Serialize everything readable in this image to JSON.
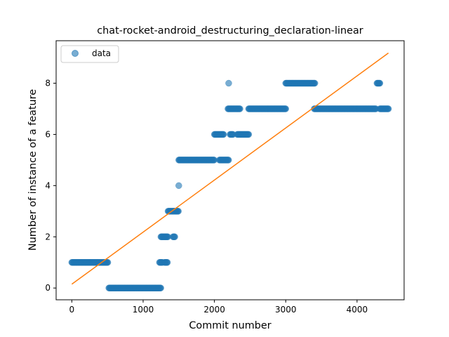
{
  "chart_data": {
    "type": "scatter",
    "title": "chat-rocket-android_destructuring_declaration-linear",
    "xlabel": "Commit number",
    "ylabel": "Number of instance of a feature",
    "xlim": [
      -220,
      4660
    ],
    "ylim": [
      -0.46,
      9.66
    ],
    "xticks": [
      0,
      1000,
      2000,
      3000,
      4000
    ],
    "yticks": [
      0,
      2,
      4,
      6,
      8
    ],
    "grid": false,
    "legend": {
      "position": "top-left",
      "entries": [
        "data"
      ]
    },
    "colors": {
      "data": "#1f77b4",
      "fit": "#ff7f0e"
    },
    "series": [
      {
        "name": "data",
        "kind": "scatter",
        "segments": [
          {
            "x_start": 0,
            "x_end": 510,
            "y": 1
          },
          {
            "x_start": 520,
            "x_end": 1250,
            "y": 0
          },
          {
            "x_start": 1230,
            "x_end": 1270,
            "y": 1
          },
          {
            "x_start": 1300,
            "x_end": 1340,
            "y": 1
          },
          {
            "x_start": 1250,
            "x_end": 1350,
            "y": 2
          },
          {
            "x_start": 1420,
            "x_end": 1450,
            "y": 2
          },
          {
            "x_start": 1350,
            "x_end": 1500,
            "y": 3
          },
          {
            "x_start": 1500,
            "x_end": 2000,
            "y": 5
          },
          {
            "x_start": 2070,
            "x_end": 2200,
            "y": 5
          },
          {
            "x_start": 2000,
            "x_end": 2130,
            "y": 6
          },
          {
            "x_start": 2220,
            "x_end": 2260,
            "y": 6
          },
          {
            "x_start": 2320,
            "x_end": 2480,
            "y": 6
          },
          {
            "x_start": 2190,
            "x_end": 2360,
            "y": 7
          },
          {
            "x_start": 2480,
            "x_end": 3000,
            "y": 7
          },
          {
            "x_start": 3000,
            "x_end": 3410,
            "y": 8
          },
          {
            "x_start": 3400,
            "x_end": 4270,
            "y": 7
          },
          {
            "x_start": 4280,
            "x_end": 4320,
            "y": 8
          },
          {
            "x_start": 4320,
            "x_end": 4440,
            "y": 7
          }
        ],
        "points": [
          {
            "x": 1500,
            "y": 4
          },
          {
            "x": 2200,
            "y": 8
          }
        ]
      },
      {
        "kind": "line",
        "x": [
          0,
          4440
        ],
        "y": [
          0.15,
          9.18
        ]
      }
    ]
  }
}
